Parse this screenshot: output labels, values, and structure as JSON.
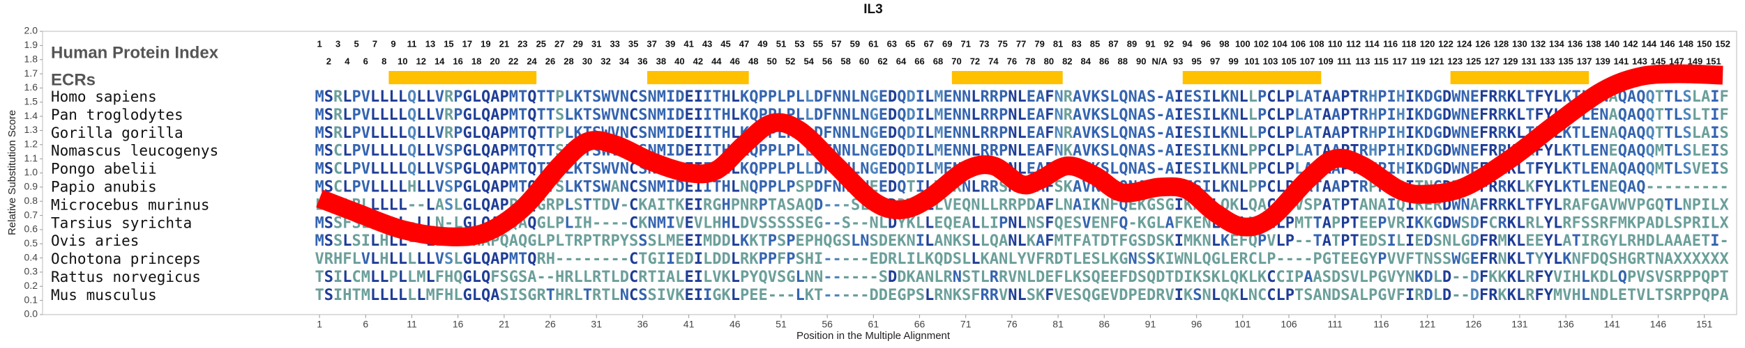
{
  "chart_data": {
    "type": "line",
    "title": "IL3",
    "ylabel": "Relative Substitution Score",
    "xlabel": "Position in the Multiple Alignment",
    "color": "#ff0000",
    "xlim": [
      -29,
      154.5
    ],
    "ylim": [
      0,
      2
    ],
    "xticks": [
      1,
      6,
      11,
      16,
      21,
      26,
      31,
      36,
      41,
      46,
      51,
      56,
      61,
      66,
      71,
      76,
      81,
      86,
      91,
      96,
      101,
      106,
      111,
      116,
      121,
      126,
      131,
      136,
      141,
      146,
      151
    ],
    "yticks": [
      {
        "value": 0,
        "label": "0.0"
      },
      {
        "value": 0.1,
        "label": "0.1"
      },
      {
        "value": 0.2,
        "label": "0.2"
      },
      {
        "value": 0.3,
        "label": "0.3"
      },
      {
        "value": 0.4,
        "label": "0.4"
      },
      {
        "value": 0.5,
        "label": "0.5"
      },
      {
        "value": 0.6,
        "label": "0.6"
      },
      {
        "value": 0.7,
        "label": "0.7"
      },
      {
        "value": 0.8,
        "label": "0.8"
      },
      {
        "value": 0.9,
        "label": "0.9"
      },
      {
        "value": 1,
        "label": "1.0"
      },
      {
        "value": 1.1,
        "label": "1.1"
      },
      {
        "value": 1.2,
        "label": "1.2"
      },
      {
        "value": 1.3,
        "label": "1.3"
      },
      {
        "value": 1.4,
        "label": "1.4"
      },
      {
        "value": 1.5,
        "label": "1.5"
      },
      {
        "value": 1.6,
        "label": "1.6"
      },
      {
        "value": 1.7,
        "label": "1.7"
      },
      {
        "value": 1.8,
        "label": "1.8"
      },
      {
        "value": 1.9,
        "label": "1.9"
      },
      {
        "value": 2,
        "label": "2.0"
      }
    ],
    "x": [
      1,
      5,
      10,
      15,
      19,
      23,
      27,
      30,
      33,
      37,
      41,
      44,
      47,
      50,
      53,
      57,
      61,
      64,
      67,
      71,
      74,
      77,
      79,
      82,
      85,
      88,
      92,
      95,
      98,
      101,
      104,
      108,
      111,
      114,
      118,
      121,
      125,
      130,
      135,
      140,
      144,
      148,
      153
    ],
    "values": [
      0.82,
      0.72,
      0.6,
      0.55,
      0.58,
      0.75,
      1.05,
      1.22,
      1.2,
      1.08,
      1.0,
      1.02,
      1.2,
      1.35,
      1.3,
      1.05,
      0.8,
      0.74,
      0.82,
      1.02,
      1.05,
      0.92,
      0.95,
      1.05,
      0.98,
      0.86,
      0.9,
      0.88,
      0.72,
      0.62,
      0.68,
      0.95,
      1.1,
      1.05,
      0.88,
      0.85,
      0.9,
      1.1,
      1.35,
      1.58,
      1.68,
      1.7,
      1.69
    ],
    "human_index_label": "Human Protein Index",
    "human_index": [
      1,
      2,
      3,
      4,
      5,
      6,
      7,
      8,
      9,
      10,
      11,
      12,
      13,
      14,
      15,
      16,
      17,
      18,
      19,
      20,
      21,
      22,
      23,
      24,
      25,
      26,
      27,
      28,
      29,
      30,
      31,
      32,
      33,
      34,
      35,
      36,
      37,
      38,
      39,
      40,
      41,
      42,
      43,
      44,
      45,
      46,
      47,
      48,
      49,
      50,
      51,
      52,
      53,
      54,
      55,
      56,
      57,
      58,
      59,
      60,
      61,
      62,
      63,
      64,
      65,
      66,
      67,
      68,
      69,
      70,
      71,
      72,
      73,
      74,
      75,
      76,
      77,
      78,
      79,
      80,
      81,
      82,
      83,
      84,
      85,
      86,
      87,
      88,
      89,
      90,
      91,
      "N/A",
      92,
      93,
      94,
      95,
      96,
      97,
      98,
      99,
      100,
      101,
      102,
      103,
      104,
      105,
      106,
      107,
      108,
      109,
      110,
      111,
      112,
      113,
      114,
      115,
      116,
      117,
      118,
      119,
      120,
      121,
      122,
      123,
      124,
      125,
      126,
      127,
      128,
      129,
      130,
      131,
      132,
      133,
      134,
      135,
      136,
      137,
      138,
      139,
      140,
      141,
      142,
      143,
      144,
      145,
      146,
      147,
      148,
      149,
      150,
      151,
      152
    ],
    "ecr_label": "ECRs",
    "ecr_color": "#ffc000",
    "ecrs": [
      [
        9,
        24
      ],
      [
        37,
        47
      ],
      [
        70,
        81
      ],
      [
        95,
        109
      ],
      [
        124,
        138
      ]
    ],
    "rows": [
      {
        "species": "Homo sapiens",
        "sequence": "MSRLPVLLLLQLLVRPGLQAPMTQTTPLKTSWVNCSNMIDEIITHLKQPPLPLLDFNNLNGEDQDILMENNLRRPNLEAFNRAVKSLQNAS-AIESILKNLLPCLPLATAAPTRHPIHIKDGDWNEFRRKLTFYLKTLENAQAQQTTLSLAIF"
      },
      {
        "species": "Pan troglodytes",
        "sequence": "MSRLPVLLLLQLLVRPGLQAPMTQTTSLKTSWVNCSNMIDEIITHLKQPPLPLLDFNNLNGEDQDILMENNLRRPNLEAFNRAVKSLQNAS-AIESILKNLLPCLPLATAAPTRHPIHIKDGDWNEFRRKLTFYLKTLENAQAQQTTLSLTIF"
      },
      {
        "species": "Gorilla gorilla",
        "sequence": "MSRLPVLLLLQLLVRPGLQAPMTQTTPLKTSWVNCSNMIDEIITHLKQPPLPLLDFNNLNGEDQDILMENNLRRPNLEAFNRAVKSLQNAS-AIESILKNLLPCLPLATAAPTRHPIHIKDGDWNEFRRKLTFYLKTLENAQAQQTTLSLAIS"
      },
      {
        "species": "Nomascus leucogenys",
        "sequence": "MSCLPVLLLLQLLVSPGLQAPMTQTTSLKTSWVNCSNMIDEIITHLKQPPLPLLDFNNLNGEDQDILMENNLRRPNLEAFNKAVKSLQNAS-AIESILKNLPPCLPLATAAPTRHPIHIKDGDWNEFRRKLKFYLKTLENEQAQQMTLSLEIS"
      },
      {
        "species": "Pongo abelii",
        "sequence": "MSCLPVLLLLQLLVSPGLQAPMTQTTSLKTSWVNCSNMIDEIITHLKQPPLPLLDFNNLNGEDQDILMENNLRRPNLEAFNKAVKSLQNAS-AIESILKNLPPCLPLATAAPTRHPIHIKDGDWNEFRRKLTFYLKTLENAQAQQMTLSVEIS"
      },
      {
        "species": "Papio anubis",
        "sequence": "MSCLPVLLLLHLLVSPGLQAPMTQTTSLKTSWANCSNMIDEIITHLNQPPLPSPDFNNLNEEDQTILVEKNLRRSNLEAFSKAVKSLQNAS-AIESILKNLPPCLPMATAAPTRPPIRITNGDRNDFRRKLKFYLKTLENEQAQ---------"
      },
      {
        "species": "Microcebus murinus",
        "sequence": "LPALRLLLLL--LASLGLQAPPAQGRPLSTTDV-CKAITKEIRGHPNRPTASAQD---SLDPDDYQLLVEQNLLRRPDAFLNAIKNFQEKGSGIKNVLQKLQACLPVSPATPTANAIQIRERDWNAFRRKLTFYLRAFGAVWVPGQTLNPILX"
      },
      {
        "species": "Tarsius syrichta",
        "sequence": "MSSFSLLLLL-LLN-LGLQAPQAQGLPLIH----CKNMIVEVLHHLDVSSSSSEG--S--NLDYKLLEQEALLIPNLNSFQESVENFQ-KGLAFKENLKGLHACLPMTTAPPTEEPVRIKKGDWSDFCRKLRLYLRFSSRFMKPADLSPRILX"
      },
      {
        "species": "Ovis aries",
        "sequence": "MSSLSILHLL--LLLSGHAPQAQGLPLTRPTRPYSSSLMEEIMDDLKKTPSPEPHQGSLNSDEKNILANKSLLQANLKAFMTFATDTFGSDSKIMKNLKEFQPVLP--TATPTEDSILIEDSNLGDFRMKLEEYLATIRGYLRHDLAAAETI-"
      },
      {
        "species": "Ochotona princeps",
        "sequence": "VRHFLVLHLLLLLVSLGLQAPMTQRH--------CTGIIEDILDDLRKPPFPSHI-----EDRLILKQDSLLKANLYVFRDTLESLKGNSSKIWNLQGLERCLP----PGTEEGYPVVFTNSSWGEFRNKLTYYLKNFDQSHGRTNAXXXXXX"
      },
      {
        "species": "Rattus norvegicus",
        "sequence": "TSILCMLLPLLMLFHQGLQFSGSA--HRLLRTLDCRTIALEILVKLPYQVSGLNN------SDDKANLRNSTLRRVNLDEFLKSQEEFDSQDTDIKSKLQKLKCCIPAASDSVLPGVYNKDLD--DFKKKLRFYVIHLKDLQPVSVSRPPQPT"
      },
      {
        "species": "Mus musculus",
        "sequence": "TSIHTMLLLLLLMFHLGLQASISGRTHRLTRTLNCSSIVKEIIGKLPEE---LKT-----DDEGPSLRNKSFRRVNLSKFVESQGEVDPEDRVIKSNLQKLNCCLPTSANDSALPGVFIRDLD--DFRKKLRFYMVHLNDLETVLTSRPPQPA"
      }
    ]
  }
}
